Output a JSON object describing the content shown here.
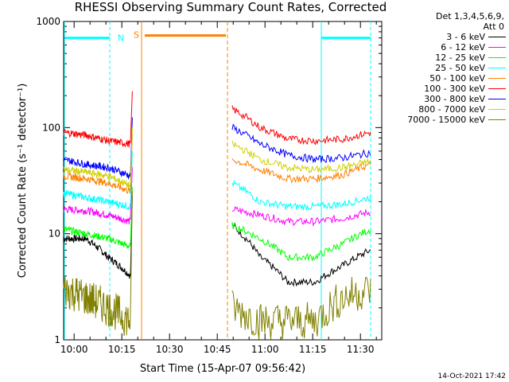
{
  "chart_data": {
    "type": "line",
    "title": "RHESSI Observing Summary Count Rates, Corrected",
    "xlabel": "Start Time (15-Apr-07 09:56:42)",
    "ylabel": "Corrected Count Rate (s⁻¹ detector⁻¹)",
    "yscale": "log",
    "ylim": [
      1,
      1000
    ],
    "xlim_minutes": [
      0,
      100
    ],
    "x_ticks": [
      "10:00",
      "10:15",
      "10:30",
      "10:45",
      "11:00",
      "11:15",
      "11:30"
    ],
    "y_ticks": [
      "1",
      "10",
      "100",
      "1000"
    ],
    "legend_header": [
      "Det 1,3,4,5,6,9,",
      "Att 0"
    ],
    "series": [
      {
        "name": "3 - 6 keV",
        "color": "#000000",
        "seg1": [
          9,
          9,
          6,
          4
        ],
        "seg2": [
          12,
          6,
          3.5,
          3.5,
          5,
          7
        ]
      },
      {
        "name": "6 - 12 keV",
        "color": "#ff00ff",
        "seg1": [
          17,
          16.5,
          15,
          13
        ],
        "seg2": [
          17,
          15,
          13,
          13,
          14,
          16
        ]
      },
      {
        "name": "12 - 25 keV",
        "color": "#00ff00",
        "seg1": [
          11,
          10,
          9,
          7.5
        ],
        "seg2": [
          12,
          9,
          6,
          6,
          8,
          11
        ]
      },
      {
        "name": "25 - 50 keV",
        "color": "#00ffff",
        "seg1": [
          24,
          22,
          20,
          18
        ],
        "seg2": [
          30,
          20,
          18,
          18,
          19,
          22
        ]
      },
      {
        "name": "50 - 100 keV",
        "color": "#ff8000",
        "seg1": [
          35,
          33,
          30,
          25
        ],
        "seg2": [
          50,
          40,
          33,
          33,
          36,
          45
        ]
      },
      {
        "name": "100 - 300 keV",
        "color": "#ff0000",
        "seg1": [
          90,
          85,
          75,
          70
        ],
        "seg2": [
          150,
          100,
          78,
          75,
          78,
          90
        ]
      },
      {
        "name": "300 - 800 keV",
        "color": "#0000ff",
        "seg1": [
          50,
          45,
          42,
          35
        ],
        "seg2": [
          100,
          70,
          55,
          50,
          52,
          58
        ]
      },
      {
        "name": "800 - 7000 keV",
        "color": "#d0d000",
        "seg1": [
          40,
          38,
          35,
          28
        ],
        "seg2": [
          70,
          50,
          42,
          40,
          42,
          48
        ]
      },
      {
        "name": "7000 - 15000 keV",
        "color": "#808000",
        "seg1": [
          3,
          2.5,
          2,
          1.5
        ],
        "seg2": [
          2,
          1.5,
          1.5,
          1.5,
          2.5,
          3
        ]
      }
    ],
    "gap_minutes": [
      21,
      52
    ],
    "annotations": {
      "night_label": "N",
      "saa_label": "S",
      "night_color": "#00ffff",
      "saa_color": "#ff8000"
    }
  },
  "timestamp": "14-Oct-2021 17:42"
}
